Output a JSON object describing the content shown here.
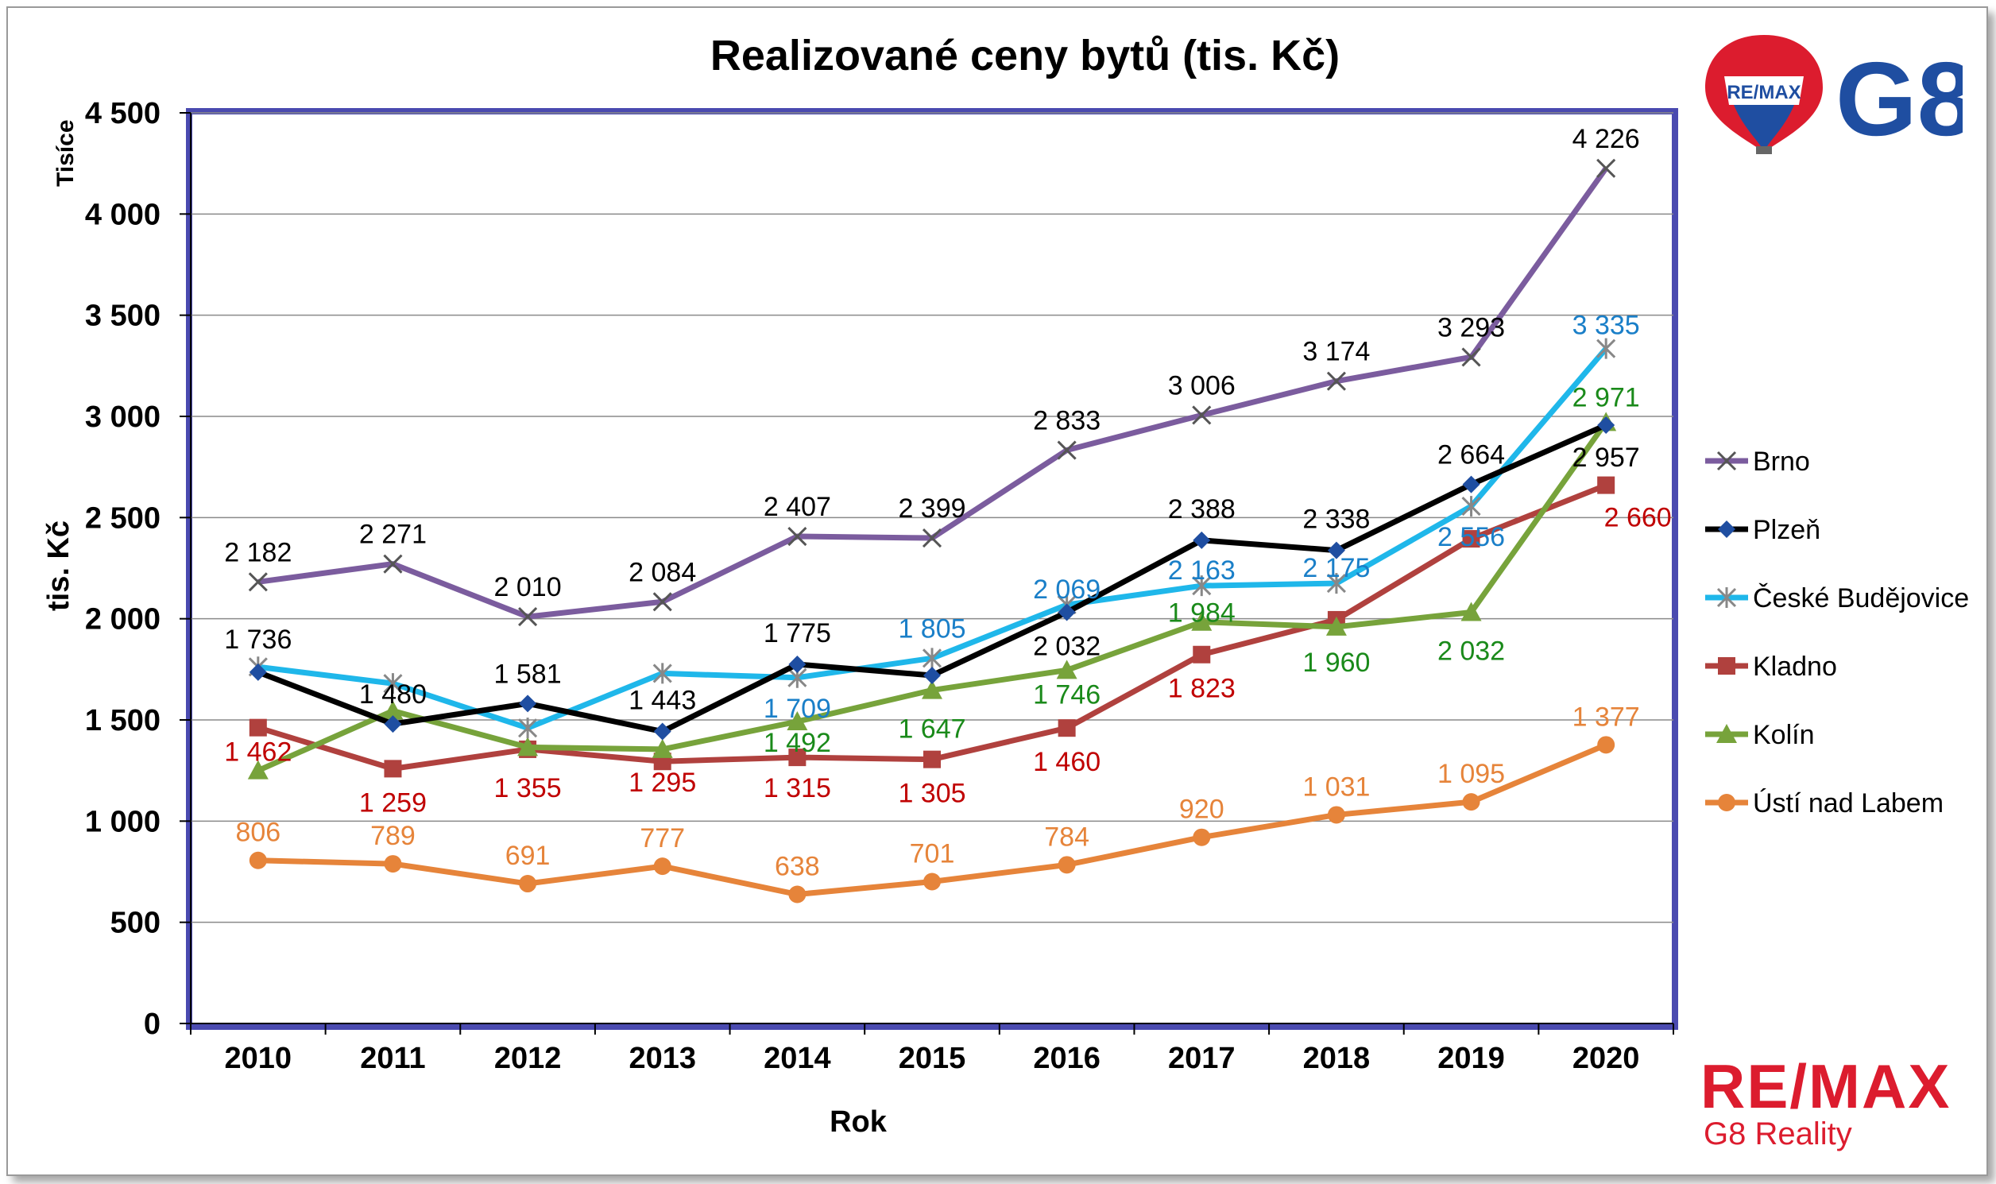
{
  "chart_data": {
    "type": "line",
    "title": "Realizované ceny bytů (tis. Kč)",
    "xlabel": "Rok",
    "ylabel": "tis. Kč",
    "yunit_label": "Tisíce",
    "ylim": [
      0,
      4500
    ],
    "yticks": [
      0,
      500,
      1000,
      1500,
      2000,
      2500,
      3000,
      3500,
      4000,
      4500
    ],
    "ytick_labels": [
      "0",
      "500",
      "1 000",
      "1 500",
      "2 000",
      "2 500",
      "3 000",
      "3 500",
      "4 000",
      "4 500"
    ],
    "categories": [
      "2010",
      "2011",
      "2012",
      "2013",
      "2014",
      "2015",
      "2016",
      "2017",
      "2018",
      "2019",
      "2020"
    ],
    "grid": true,
    "legend_position": "right",
    "series": [
      {
        "name": "Brno",
        "color": "#7b5c9e",
        "label_color": "#000000",
        "marker": "x",
        "values": [
          2182,
          2271,
          2010,
          2084,
          2407,
          2399,
          2833,
          3006,
          3174,
          3293,
          4226
        ],
        "labels": [
          "2 182",
          "2 271",
          "2 010",
          "2 084",
          "2 407",
          "2 399",
          "2 833",
          "3 006",
          "3 174",
          "3 293",
          "4 226"
        ]
      },
      {
        "name": "Plzeň",
        "color": "#000000",
        "label_color": "#000000",
        "marker": "diamond",
        "values": [
          1736,
          1480,
          1581,
          1443,
          1775,
          1720,
          2032,
          2388,
          2338,
          2664,
          2957
        ],
        "labels": [
          "1 736",
          "1 480",
          "1 581",
          "1 443",
          "1 775",
          "",
          "2 032",
          "2 388",
          "2 338",
          "2 664",
          "2 957"
        ]
      },
      {
        "name": "České Budějovice",
        "color": "#1fb7ea",
        "label_color": "#1a7fc8",
        "marker": "asterisk",
        "values": [
          1762,
          1680,
          1460,
          1730,
          1709,
          1805,
          2069,
          2163,
          2175,
          2556,
          3335
        ],
        "labels": [
          "",
          "",
          "",
          "",
          "1 709",
          "1 805",
          "2 069",
          "2 163",
          "2 175",
          "2 556",
          "3 335"
        ]
      },
      {
        "name": "Kladno",
        "color": "#b0413e",
        "label_color": "#c00000",
        "marker": "square",
        "values": [
          1462,
          1259,
          1355,
          1295,
          1315,
          1305,
          1460,
          1823,
          1995,
          2395,
          2660
        ],
        "labels": [
          "1 462",
          "1 259",
          "1 355",
          "1 295",
          "1 315",
          "1 305",
          "1 460",
          "1 823",
          "",
          "",
          "2 660"
        ]
      },
      {
        "name": "Kolín",
        "color": "#77a33b",
        "label_color": "#1a8a1a",
        "marker": "triangle",
        "values": [
          1250,
          1545,
          1365,
          1355,
          1492,
          1647,
          1746,
          1984,
          1960,
          2032,
          2971
        ],
        "labels": [
          "",
          "",
          "",
          "",
          "1 492",
          "1 647",
          "1 746",
          "1 984",
          "1 960",
          "2 032",
          "2 971"
        ]
      },
      {
        "name": "Ústí nad Labem",
        "color": "#e6843a",
        "label_color": "#e6843a",
        "marker": "circle",
        "values": [
          806,
          789,
          691,
          777,
          638,
          701,
          784,
          920,
          1031,
          1095,
          1377
        ],
        "labels": [
          "806",
          "789",
          "691",
          "777",
          "638",
          "701",
          "784",
          "920",
          "1 031",
          "1 095",
          "1 377"
        ]
      }
    ]
  },
  "logos": {
    "top_balloon_text": "RE/MAX",
    "top_brand": "G8",
    "bottom_brand": "RE/MAX",
    "bottom_sub": "G8 Reality",
    "brand_red": "#dc1c2e",
    "brand_blue": "#1f4ea1"
  }
}
